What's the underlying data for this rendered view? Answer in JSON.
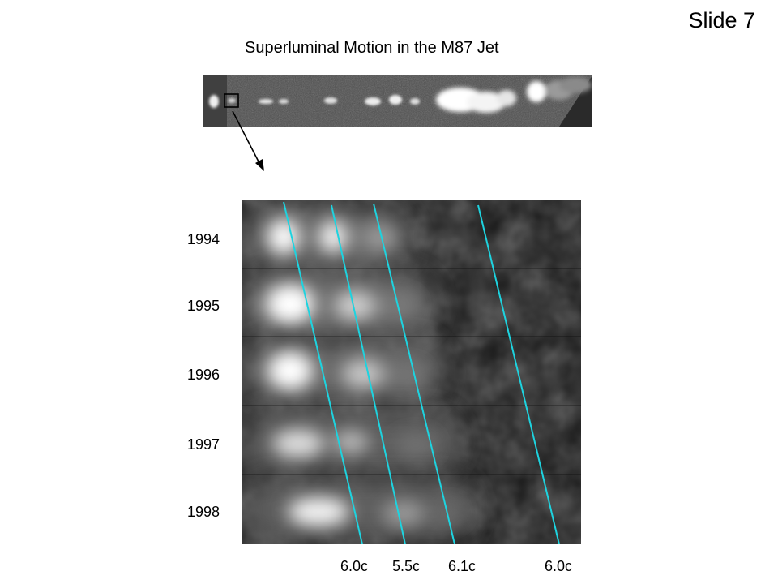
{
  "slide": {
    "label": "Slide 7"
  },
  "figure": {
    "title": "Superluminal Motion in the M87 Jet",
    "years": [
      "1994",
      "1995",
      "1996",
      "1997",
      "1998"
    ],
    "speeds": [
      "6.0c",
      "5.5c",
      "6.1c",
      "6.0c"
    ],
    "line_color": "#1ed3df"
  }
}
